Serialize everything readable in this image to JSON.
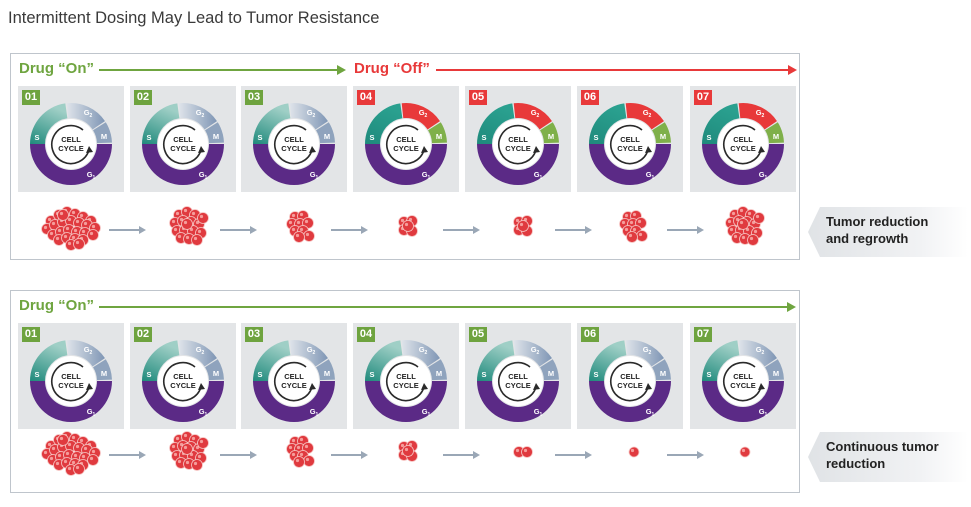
{
  "title": "Intermittent Dosing May Lead to Tumor Resistance",
  "cycle_text": {
    "line1": "CELL",
    "line2": "CYCLE",
    "s": "S",
    "g2": "G",
    "g2_sub": "2",
    "m": "M",
    "g1": "G",
    "g1_sub": "1"
  },
  "colors": {
    "drug_on": "#6fa540",
    "drug_off": "#e8393a",
    "s_phase": "#2d9a8a",
    "g1_phase": "#5b2a86",
    "g2_phase": "#7f96b5",
    "m_phase": "#8fa3bd",
    "g2_active": "#e8393a",
    "m_active": "#7fb04a",
    "tumor": "#e03a3f",
    "tile": "#e3e5e7"
  },
  "panels": [
    {
      "id": "intermittent",
      "drug_on_label": "Drug “On”",
      "drug_off_label": "Drug “Off”",
      "side_label": [
        "Tumor reduction",
        "and regrowth"
      ],
      "steps": [
        {
          "num": "01",
          "state": "on",
          "tumor_size": 5
        },
        {
          "num": "02",
          "state": "on",
          "tumor_size": 4
        },
        {
          "num": "03",
          "state": "on",
          "tumor_size": 3
        },
        {
          "num": "04",
          "state": "off",
          "tumor_size": 2
        },
        {
          "num": "05",
          "state": "off",
          "tumor_size": 2
        },
        {
          "num": "06",
          "state": "off",
          "tumor_size": 3
        },
        {
          "num": "07",
          "state": "off",
          "tumor_size": 4
        }
      ]
    },
    {
      "id": "continuous",
      "drug_on_label": "Drug “On”",
      "side_label": [
        "Continuous tumor",
        "reduction"
      ],
      "steps": [
        {
          "num": "01",
          "state": "on",
          "tumor_size": 5
        },
        {
          "num": "02",
          "state": "on",
          "tumor_size": 4
        },
        {
          "num": "03",
          "state": "on",
          "tumor_size": 3
        },
        {
          "num": "04",
          "state": "on",
          "tumor_size": 2
        },
        {
          "num": "05",
          "state": "on",
          "tumor_size": 1
        },
        {
          "num": "06",
          "state": "on",
          "tumor_size": 0
        },
        {
          "num": "07",
          "state": "on",
          "tumor_size": 0
        }
      ]
    }
  ]
}
